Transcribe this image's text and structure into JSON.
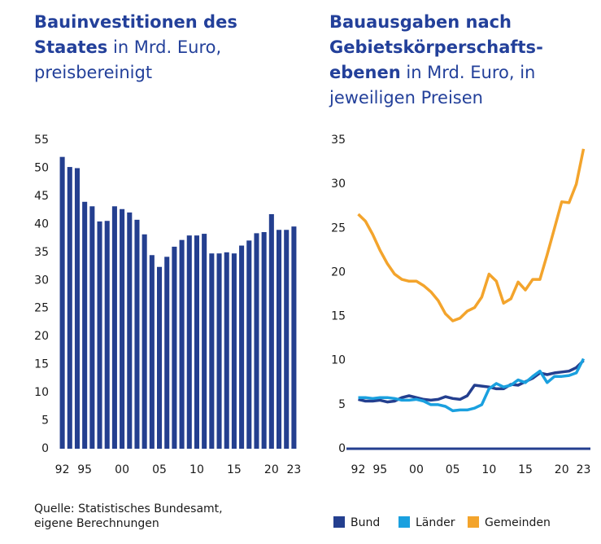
{
  "chart_data": [
    {
      "type": "bar",
      "title": [
        "Bauinvestitionen des Staates",
        "in Mrd. Euro, preisbereinigt"
      ],
      "categories": [
        "92",
        null,
        null,
        "95",
        null,
        null,
        null,
        null,
        "00",
        null,
        null,
        null,
        null,
        "05",
        null,
        null,
        null,
        null,
        "10",
        null,
        null,
        null,
        null,
        "15",
        null,
        null,
        null,
        null,
        "20",
        null,
        null,
        "23"
      ],
      "values": [
        52,
        50.2,
        50,
        44,
        43.2,
        40.5,
        40.6,
        43.2,
        42.7,
        42.1,
        40.8,
        38.2,
        34.5,
        32.4,
        34.2,
        36,
        37.2,
        38,
        38,
        38.3,
        34.8,
        34.8,
        35,
        34.8,
        36.2,
        37.1,
        38.4,
        38.6,
        41.8,
        39,
        39,
        39.6
      ],
      "color": "#243f8f",
      "ylim": [
        0,
        55
      ],
      "yticks": [
        0,
        5,
        10,
        15,
        20,
        25,
        30,
        35,
        40,
        45,
        50,
        55
      ]
    },
    {
      "type": "line",
      "title": [
        "Bauausgaben nach Gebietskörperschafts­ebenen",
        "in Mrd. Euro, in jeweiligen Preisen"
      ],
      "categories": [
        "92",
        null,
        null,
        "95",
        null,
        null,
        null,
        null,
        "00",
        null,
        null,
        null,
        null,
        "05",
        null,
        null,
        null,
        null,
        "10",
        null,
        null,
        null,
        null,
        "15",
        null,
        null,
        null,
        null,
        "20",
        null,
        null,
        "23"
      ],
      "series": [
        {
          "name": "Bund",
          "color": "#243f8f",
          "values": [
            5.6,
            5.4,
            5.4,
            5.5,
            5.3,
            5.4,
            5.8,
            6.0,
            5.8,
            5.6,
            5.5,
            5.6,
            5.9,
            5.7,
            5.6,
            6.0,
            7.2,
            7.1,
            7.0,
            6.8,
            6.8,
            7.3,
            7.2,
            7.6,
            8.0,
            8.6,
            8.4,
            8.6,
            8.7,
            8.8,
            9.2,
            10.0
          ]
        },
        {
          "name": "Länder",
          "color": "#1aa0df",
          "values": [
            5.8,
            5.8,
            5.7,
            5.8,
            5.8,
            5.7,
            5.5,
            5.5,
            5.6,
            5.4,
            5.0,
            5.0,
            4.8,
            4.3,
            4.4,
            4.4,
            4.6,
            5.0,
            6.8,
            7.4,
            7.0,
            7.2,
            7.8,
            7.5,
            8.2,
            8.8,
            7.5,
            8.2,
            8.2,
            8.3,
            8.6,
            10.2
          ]
        },
        {
          "name": "Gemeinden",
          "color": "#f3a42c",
          "values": [
            26.6,
            25.8,
            24.3,
            22.5,
            21,
            19.8,
            19.2,
            19,
            19,
            18.5,
            17.8,
            16.8,
            15.3,
            14.5,
            14.8,
            15.6,
            16,
            17.2,
            19.8,
            19,
            16.5,
            17,
            18.9,
            18,
            19.2,
            19.2,
            22,
            25,
            28,
            27.9,
            30,
            34
          ]
        }
      ],
      "ylim": [
        0,
        35
      ],
      "yticks": [
        0,
        5,
        10,
        15,
        20,
        25,
        30,
        35
      ]
    }
  ],
  "source": [
    "Quelle: Statistisches Bundesamt,",
    "eigene Berechnungen"
  ]
}
